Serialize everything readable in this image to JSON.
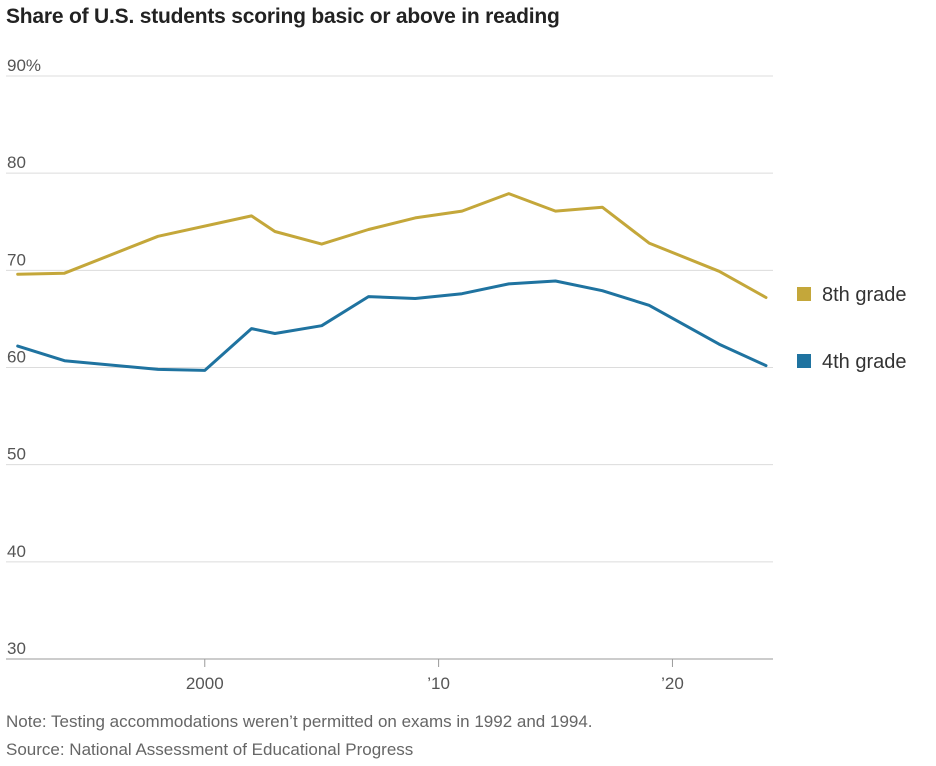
{
  "chart_data": {
    "type": "line",
    "title": "Share of U.S. students scoring basic or above in reading",
    "xlabel": "",
    "ylabel": "",
    "xlim": [
      1991.5,
      2024.3
    ],
    "ylim": [
      30,
      90
    ],
    "y_ticks": [
      {
        "value": 90,
        "label": "90%"
      },
      {
        "value": 80,
        "label": "80"
      },
      {
        "value": 70,
        "label": "70"
      },
      {
        "value": 60,
        "label": "60"
      },
      {
        "value": 50,
        "label": "50"
      },
      {
        "value": 40,
        "label": "40"
      },
      {
        "value": 30,
        "label": "30"
      }
    ],
    "x_ticks": [
      {
        "value": 2000,
        "label": "2000"
      },
      {
        "value": 2010,
        "label": "’10"
      },
      {
        "value": 2020,
        "label": "’20"
      }
    ],
    "grid": true,
    "legend_position": "right",
    "series": [
      {
        "name": "8th grade",
        "color": "#c4a73a",
        "x": [
          1992,
          1994,
          1998,
          2002,
          2003,
          2005,
          2007,
          2009,
          2011,
          2013,
          2015,
          2017,
          2019,
          2022,
          2024
        ],
        "y": [
          69.6,
          69.7,
          73.5,
          75.6,
          74,
          72.7,
          74.2,
          75.4,
          76.1,
          77.9,
          76.1,
          76.5,
          72.8,
          69.9,
          67.2
        ]
      },
      {
        "name": "4th grade",
        "color": "#1f73a0",
        "x": [
          1992,
          1994,
          1998,
          2000,
          2002,
          2003,
          2005,
          2007,
          2009,
          2011,
          2013,
          2015,
          2017,
          2019,
          2022,
          2024
        ],
        "y": [
          62.2,
          60.7,
          59.8,
          59.7,
          64,
          63.5,
          64.3,
          67.3,
          67.1,
          67.6,
          68.6,
          68.9,
          67.9,
          66.4,
          62.4,
          60.2
        ]
      }
    ]
  },
  "notes": {
    "note": "Note: Testing accommodations weren’t permitted on exams in 1992 and 1994.",
    "source": "Source: National Assessment of Educational Progress"
  }
}
